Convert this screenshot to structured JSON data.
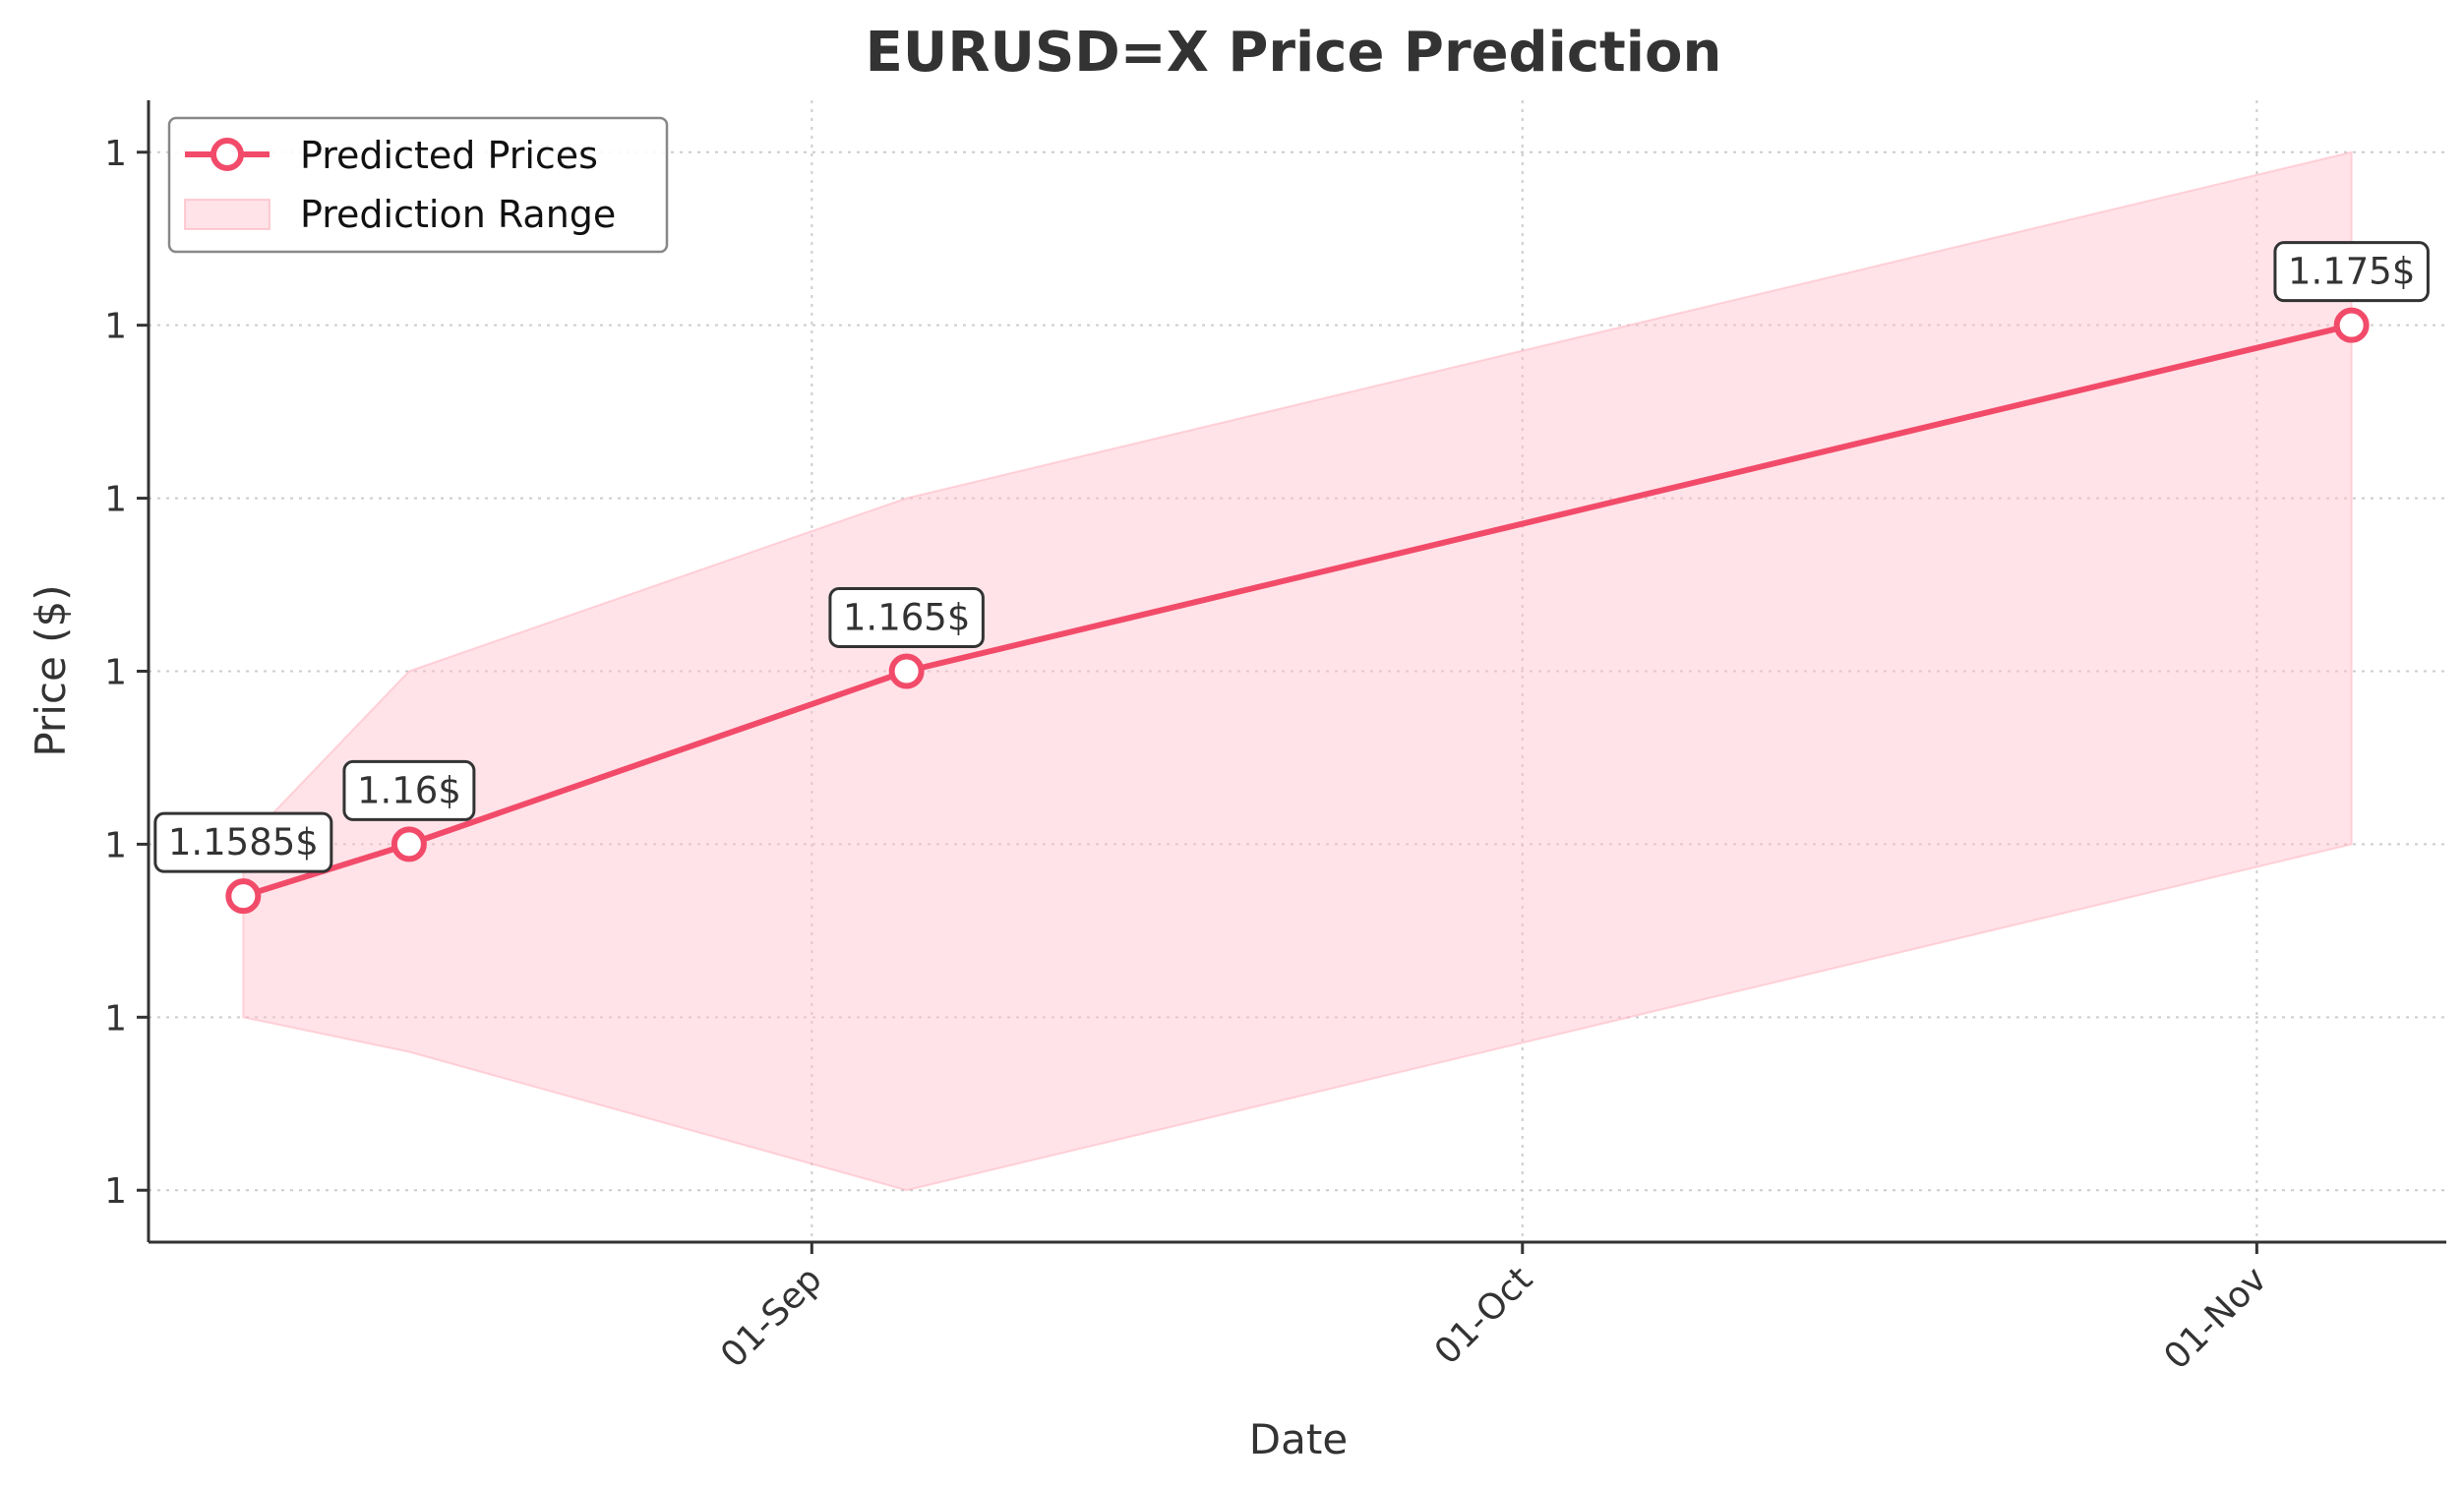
{
  "chart_data": {
    "type": "line",
    "title": "EURUSD=X Price Prediction",
    "xlabel": "Date",
    "ylabel": "Price ($)",
    "x_dates": [
      "2025-08-08",
      "2025-08-15",
      "2025-09-05",
      "2025-11-05"
    ],
    "series": [
      {
        "name": "Predicted Prices",
        "values": [
          1.1585,
          1.16,
          1.165,
          1.175
        ],
        "color": "#f24b6a"
      }
    ],
    "range_band": {
      "name": "Prediction Range",
      "upper": [
        1.16,
        1.165,
        1.17,
        1.18
      ],
      "lower": [
        1.155,
        1.154,
        1.15,
        1.16
      ],
      "color": "#ffc0cb"
    },
    "annotations": [
      "1.1585$",
      "1.16$",
      "1.165$",
      "1.175$"
    ],
    "x_ticks": [
      {
        "date": "2025-09-01",
        "label": "01-Sep"
      },
      {
        "date": "2025-10-01",
        "label": "01-Oct"
      },
      {
        "date": "2025-11-01",
        "label": "01-Nov"
      }
    ],
    "y_ticks": [
      {
        "value": 1.15,
        "label": "1"
      },
      {
        "value": 1.155,
        "label": "1"
      },
      {
        "value": 1.16,
        "label": "1"
      },
      {
        "value": 1.165,
        "label": "1"
      },
      {
        "value": 1.17,
        "label": "1"
      },
      {
        "value": 1.175,
        "label": "1"
      },
      {
        "value": 1.18,
        "label": "1"
      }
    ],
    "xlim": [
      "2025-08-04",
      "2025-11-09"
    ],
    "ylim": [
      1.1485,
      1.1815
    ],
    "grid": true,
    "legend_position": "top-left"
  }
}
